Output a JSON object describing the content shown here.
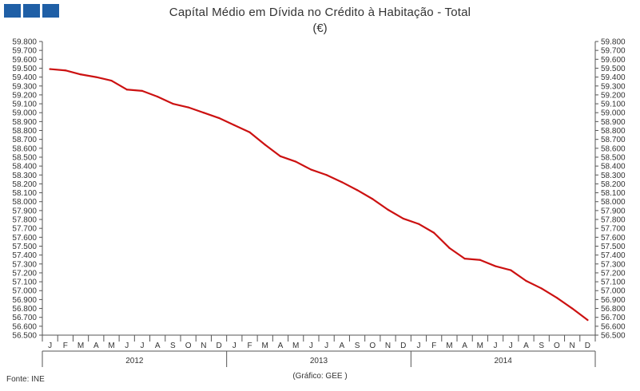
{
  "header": {
    "title": "Capítal Médio em Dívida no Crédito à Habitação - Total",
    "subtitle": "(€)"
  },
  "footer": {
    "source": "Fonte: INE",
    "credit": "(Gráfico: GEE )"
  },
  "colors": {
    "line": "#cc1111",
    "logo": "#1f5fa6",
    "axis": "#555555"
  },
  "chart_data": {
    "type": "line",
    "title": "Capítal Médio em Dívida no Crédito à Habitação - Total",
    "subtitle": "(€)",
    "ylim": [
      56500,
      59800
    ],
    "ytick_step": 100,
    "ytick_labels": [
      "56.500",
      "56.600",
      "56.700",
      "56.800",
      "56.900",
      "57.000",
      "57.100",
      "57.200",
      "57.300",
      "57.400",
      "57.500",
      "57.600",
      "57.700",
      "57.800",
      "57.900",
      "58.000",
      "58.100",
      "58.200",
      "58.300",
      "58.400",
      "58.500",
      "58.600",
      "58.700",
      "58.800",
      "58.900",
      "59.000",
      "59.100",
      "59.200",
      "59.300",
      "59.400",
      "59.500",
      "59.600",
      "59.700",
      "59.800"
    ],
    "month_labels": [
      "J",
      "F",
      "M",
      "A",
      "M",
      "J",
      "J",
      "A",
      "S",
      "O",
      "N",
      "D",
      "J",
      "F",
      "M",
      "A",
      "M",
      "J",
      "J",
      "A",
      "S",
      "O",
      "N",
      "D",
      "J",
      "F",
      "M",
      "A",
      "M",
      "J",
      "J",
      "A",
      "S",
      "O",
      "N",
      "D"
    ],
    "years": [
      "2012",
      "2013",
      "2014"
    ],
    "grid": false,
    "series": [
      {
        "values": [
          59490,
          59475,
          59430,
          59400,
          59360,
          59260,
          59245,
          59180,
          59100,
          59060,
          59000,
          58940,
          58860,
          58780,
          58640,
          58510,
          58450,
          58360,
          58300,
          58220,
          58130,
          58030,
          57910,
          57810,
          57750,
          57650,
          57480,
          57360,
          57345,
          57275,
          57230,
          57110,
          57025,
          56920,
          56800,
          56670
        ]
      }
    ]
  }
}
